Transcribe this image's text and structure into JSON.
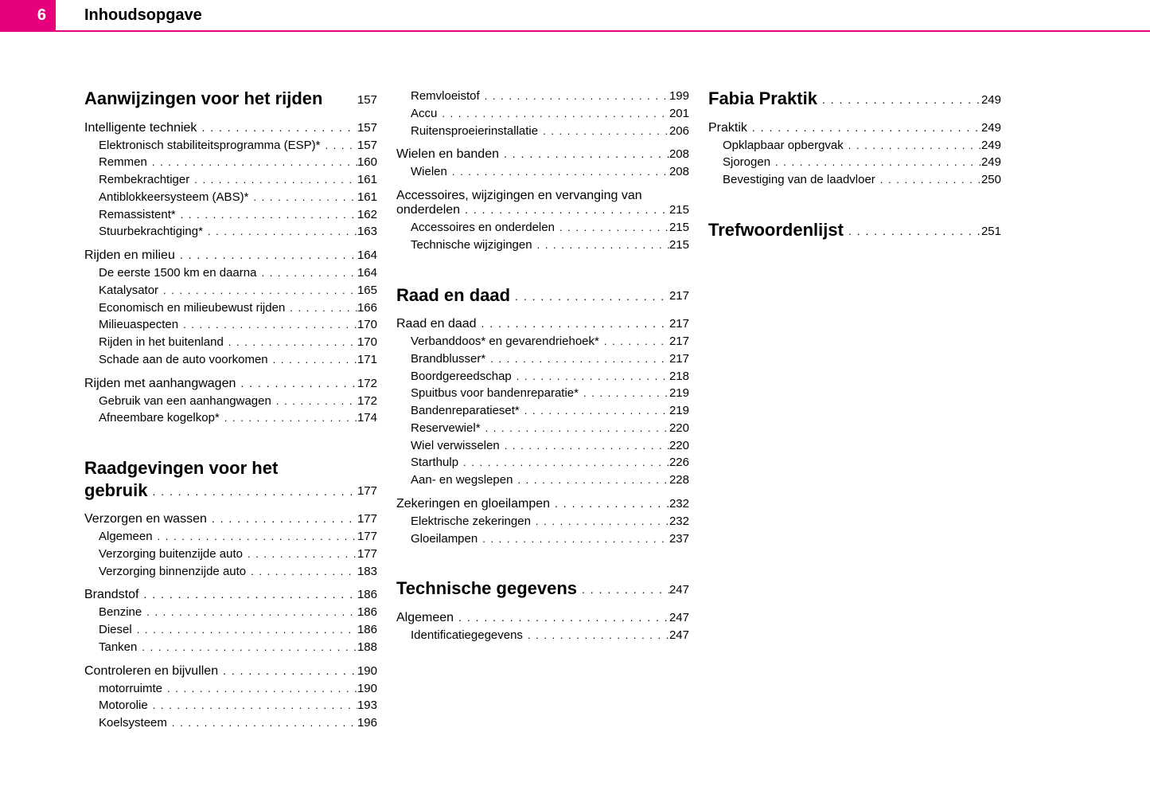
{
  "header": {
    "page_number": "6",
    "title": "Inhoudsopgave"
  },
  "accent_color": "#e6007e",
  "columns": [
    {
      "items": [
        {
          "type": "chapter",
          "label": "Aanwijzingen voor het rijden",
          "page": "157",
          "nodots": true
        },
        {
          "type": "section",
          "label": "Intelligente techniek",
          "page": "157"
        },
        {
          "type": "sub",
          "label": "Elektronisch stabiliteitsprogramma (ESP)*",
          "page": "157"
        },
        {
          "type": "sub",
          "label": "Remmen",
          "page": "160"
        },
        {
          "type": "sub",
          "label": "Rembekrachtiger",
          "page": "161"
        },
        {
          "type": "sub",
          "label": "Antiblokkeersysteem (ABS)*",
          "page": "161"
        },
        {
          "type": "sub",
          "label": "Remassistent*",
          "page": "162"
        },
        {
          "type": "sub",
          "label": "Stuurbekrachtiging*",
          "page": "163"
        },
        {
          "type": "section",
          "label": "Rijden en milieu",
          "page": "164"
        },
        {
          "type": "sub",
          "label": "De eerste 1500 km en daarna",
          "page": "164"
        },
        {
          "type": "sub",
          "label": "Katalysator",
          "page": "165"
        },
        {
          "type": "sub",
          "label": "Economisch en milieubewust rijden",
          "page": "166"
        },
        {
          "type": "sub",
          "label": "Milieuaspecten",
          "page": "170"
        },
        {
          "type": "sub",
          "label": "Rijden in het buitenland",
          "page": "170"
        },
        {
          "type": "sub",
          "label": "Schade aan de auto voorkomen",
          "page": "171"
        },
        {
          "type": "section",
          "label": "Rijden met aanhangwagen",
          "page": "172"
        },
        {
          "type": "sub",
          "label": "Gebruik van een aanhangwagen",
          "page": "172"
        },
        {
          "type": "sub",
          "label": "Afneembare kogelkop*",
          "page": "174"
        },
        {
          "type": "chapter",
          "label_line1": "Raadgevingen voor het",
          "label_line2": "gebruik",
          "page": "177",
          "multiline": true
        },
        {
          "type": "section",
          "label": "Verzorgen en wassen",
          "page": "177"
        },
        {
          "type": "sub",
          "label": "Algemeen",
          "page": "177"
        },
        {
          "type": "sub",
          "label": "Verzorging buitenzijde auto",
          "page": "177"
        },
        {
          "type": "sub",
          "label": "Verzorging binnenzijde auto",
          "page": "183"
        },
        {
          "type": "section",
          "label": "Brandstof",
          "page": "186"
        },
        {
          "type": "sub",
          "label": "Benzine",
          "page": "186"
        },
        {
          "type": "sub",
          "label": "Diesel",
          "page": "186"
        },
        {
          "type": "sub",
          "label": "Tanken",
          "page": "188"
        },
        {
          "type": "section",
          "label": "Controleren en bijvullen",
          "page": "190"
        },
        {
          "type": "sub",
          "label": "motorruimte",
          "page": "190"
        },
        {
          "type": "sub",
          "label": "Motorolie",
          "page": "193"
        },
        {
          "type": "sub",
          "label": "Koelsysteem",
          "page": "196"
        }
      ]
    },
    {
      "items": [
        {
          "type": "sub",
          "label": "Remvloeistof",
          "page": "199"
        },
        {
          "type": "sub",
          "label": "Accu",
          "page": "201"
        },
        {
          "type": "sub",
          "label": "Ruitensproeierinstallatie",
          "page": "206"
        },
        {
          "type": "section",
          "label": "Wielen en banden",
          "page": "208"
        },
        {
          "type": "sub",
          "label": "Wielen",
          "page": "208"
        },
        {
          "type": "section",
          "label_line1": "Accessoires, wijzigingen en vervanging van",
          "label_line2": "onderdelen",
          "page": "215",
          "multiline": true
        },
        {
          "type": "sub",
          "label": "Accessoires en onderdelen",
          "page": "215"
        },
        {
          "type": "sub",
          "label": "Technische wijzigingen",
          "page": "215"
        },
        {
          "type": "chapter",
          "label": "Raad en daad",
          "page": "217"
        },
        {
          "type": "section",
          "label": "Raad en daad",
          "page": "217"
        },
        {
          "type": "sub",
          "label": "Verbanddoos* en gevarendriehoek*",
          "page": "217"
        },
        {
          "type": "sub",
          "label": "Brandblusser*",
          "page": "217"
        },
        {
          "type": "sub",
          "label": "Boordgereedschap",
          "page": "218"
        },
        {
          "type": "sub",
          "label": "Spuitbus voor bandenreparatie*",
          "page": "219"
        },
        {
          "type": "sub",
          "label": "Bandenreparatieset*",
          "page": "219"
        },
        {
          "type": "sub",
          "label": "Reservewiel*",
          "page": "220"
        },
        {
          "type": "sub",
          "label": "Wiel verwisselen",
          "page": "220"
        },
        {
          "type": "sub",
          "label": "Starthulp",
          "page": "226"
        },
        {
          "type": "sub",
          "label": "Aan- en wegslepen",
          "page": "228"
        },
        {
          "type": "section",
          "label": "Zekeringen en gloeilampen",
          "page": "232"
        },
        {
          "type": "sub",
          "label": "Elektrische zekeringen",
          "page": "232"
        },
        {
          "type": "sub",
          "label": "Gloeilampen",
          "page": "237"
        },
        {
          "type": "chapter",
          "label": "Technische gegevens",
          "page": "247"
        },
        {
          "type": "section",
          "label": "Algemeen",
          "page": "247"
        },
        {
          "type": "sub",
          "label": "Identificatiegegevens",
          "page": "247"
        }
      ]
    },
    {
      "items": [
        {
          "type": "chapter",
          "label": "Fabia Praktik",
          "page": "249",
          "first": true
        },
        {
          "type": "section",
          "label": "Praktik",
          "page": "249"
        },
        {
          "type": "sub",
          "label": "Opklapbaar opbergvak",
          "page": "249"
        },
        {
          "type": "sub",
          "label": "Sjorogen",
          "page": "249"
        },
        {
          "type": "sub",
          "label": "Bevestiging van de laadvloer",
          "page": "250"
        },
        {
          "type": "chapter",
          "label": "Trefwoordenlijst",
          "page": "251"
        }
      ]
    }
  ]
}
